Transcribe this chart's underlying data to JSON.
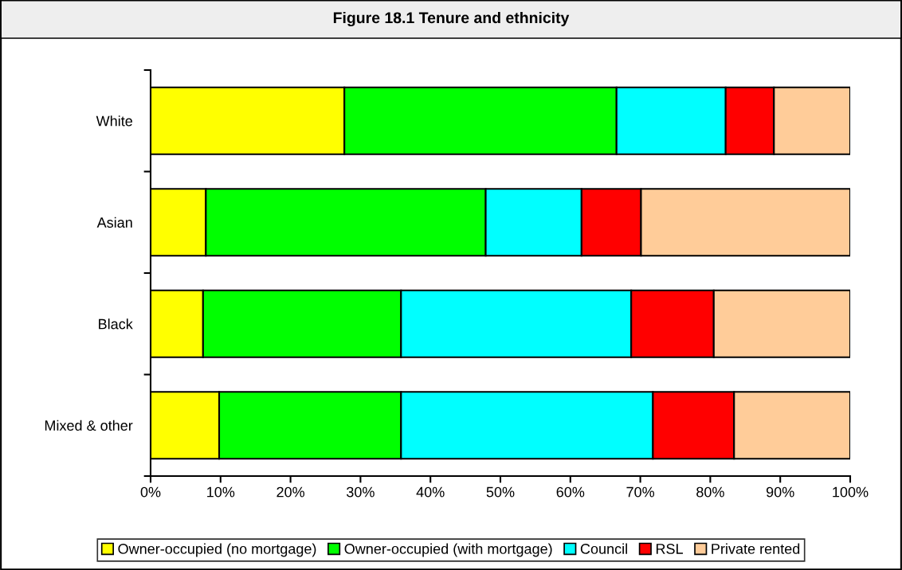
{
  "chart_data": {
    "type": "bar",
    "orientation": "horizontal",
    "stacked": true,
    "title": "Figure 18.1 Tenure and ethnicity",
    "categories": [
      "White",
      "Asian",
      "Black",
      "Mixed & other"
    ],
    "series": [
      {
        "name": "Owner-occupied (no mortgage)",
        "color": "#ffff00",
        "values": [
          27.7,
          7.9,
          7.5,
          9.8
        ]
      },
      {
        "name": "Owner-occupied (with mortgage)",
        "color": "#00ff00",
        "values": [
          38.9,
          40.0,
          28.3,
          26.0
        ]
      },
      {
        "name": "Council",
        "color": "#00ffff",
        "values": [
          15.6,
          13.7,
          32.9,
          36.0
        ]
      },
      {
        "name": "RSL",
        "color": "#ff0000",
        "values": [
          6.9,
          8.5,
          11.8,
          11.6
        ]
      },
      {
        "name": "Private rented",
        "color": "#ffcc99",
        "values": [
          10.9,
          29.9,
          19.5,
          16.6
        ]
      }
    ],
    "xlim": [
      0,
      100
    ],
    "xticks": [
      {
        "value": 0,
        "label": "0%"
      },
      {
        "value": 10,
        "label": "10%"
      },
      {
        "value": 20,
        "label": "20%"
      },
      {
        "value": 30,
        "label": "30%"
      },
      {
        "value": 40,
        "label": "40%"
      },
      {
        "value": 50,
        "label": "50%"
      },
      {
        "value": 60,
        "label": "60%"
      },
      {
        "value": 70,
        "label": "70%"
      },
      {
        "value": 80,
        "label": "80%"
      },
      {
        "value": 90,
        "label": "90%"
      },
      {
        "value": 100,
        "label": "100%"
      }
    ],
    "grid": false,
    "legend": "bottom"
  }
}
